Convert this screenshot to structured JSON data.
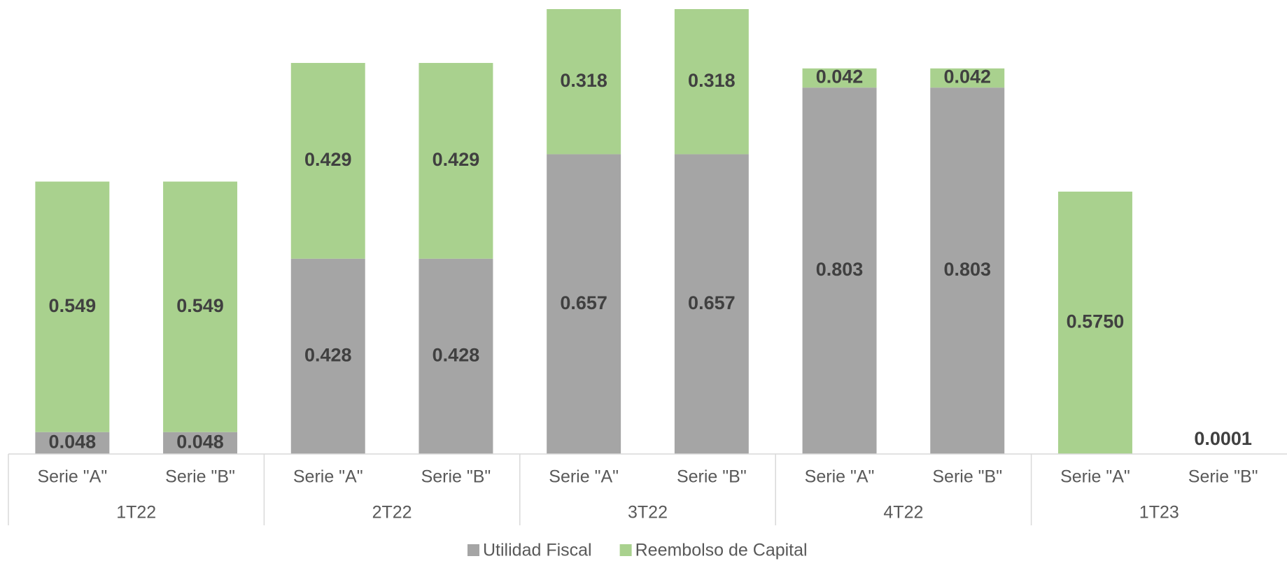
{
  "chart_data": {
    "type": "stacked_bar",
    "categories": [
      "Serie \"A\"",
      "Serie \"B\"",
      "Serie \"A\"",
      "Serie \"B\"",
      "Serie \"A\"",
      "Serie \"B\"",
      "Serie \"A\"",
      "Serie \"B\"",
      "Serie \"A\"",
      "Serie \"B\""
    ],
    "groups": [
      "1T22",
      "2T22",
      "3T22",
      "4T22",
      "1T23"
    ],
    "series": [
      {
        "name": "Utilidad Fiscal",
        "color": "#a5a5a5",
        "values": [
          0.048,
          0.048,
          0.428,
          0.428,
          0.657,
          0.657,
          0.803,
          0.803,
          null,
          null
        ]
      },
      {
        "name": "Reembolso de Capital",
        "color": "#a9d18e",
        "values": [
          0.549,
          0.549,
          0.429,
          0.429,
          0.318,
          0.318,
          0.042,
          0.042,
          0.575,
          0.0001
        ],
        "value_labels": [
          "0.549",
          "0.549",
          "0.429",
          "0.429",
          "0.318",
          "0.318",
          "0.042",
          "0.042",
          "0.5750",
          "0.0001"
        ]
      }
    ],
    "ylim": [
      0,
      0.975
    ]
  }
}
